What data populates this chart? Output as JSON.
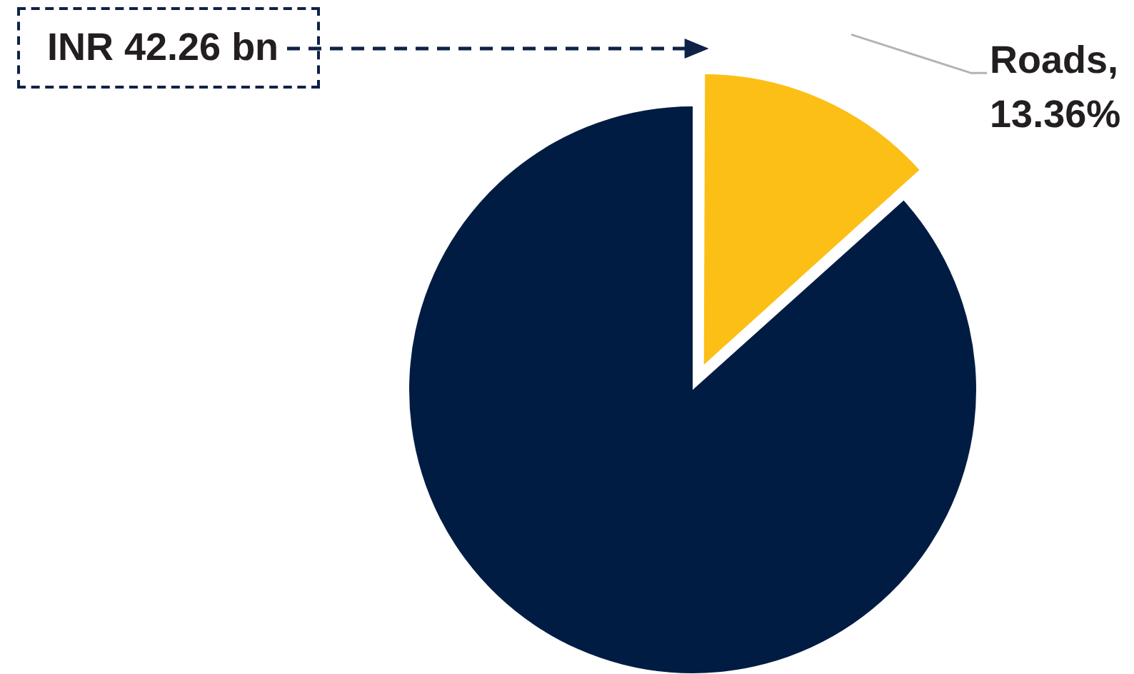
{
  "chart_data": {
    "type": "pie",
    "categories": [
      null,
      null
    ],
    "values": [
      13.36,
      86.64
    ],
    "colors": [
      "#fcbf16",
      "#011c43"
    ],
    "value_labels": [
      "Roads, 13.36%",
      null
    ],
    "annotations": [
      "INR 42.26 bn"
    ]
  }
}
